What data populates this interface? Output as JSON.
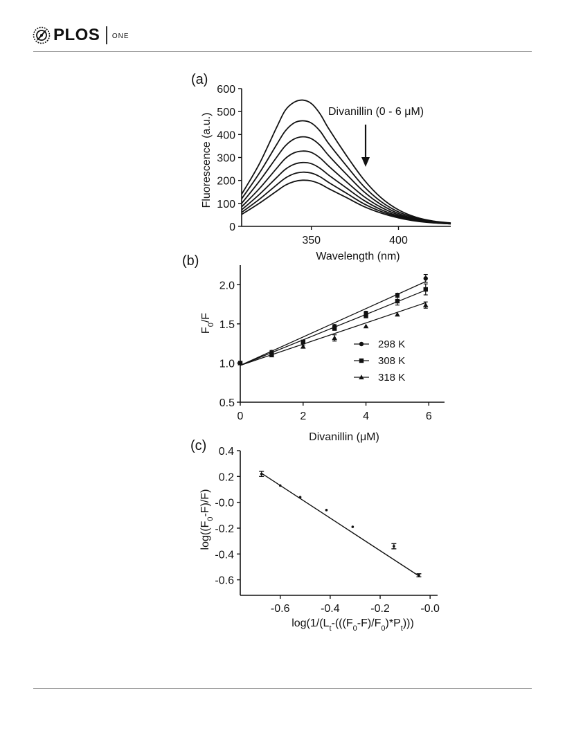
{
  "header": {
    "brand": "PLOS",
    "journal": "ONE",
    "logo_icon": "plos-logo-icon"
  },
  "chart_data": [
    {
      "panel_label": "(a)",
      "type": "line",
      "xlabel": "Wavelength (nm)",
      "ylabel": "Fluorescence (a.u.)",
      "xlim": [
        310,
        430
      ],
      "ylim": [
        0,
        600
      ],
      "xticks": [
        350,
        400
      ],
      "yticks": [
        0,
        100,
        200,
        300,
        400,
        500,
        600
      ],
      "annotation": "Divanillin (0 - 6 μM)",
      "arrow": "downward arrow indicating decreasing fluorescence",
      "x": [
        310,
        320,
        330,
        335,
        340,
        345,
        350,
        355,
        360,
        370,
        380,
        390,
        400,
        410,
        420,
        430
      ],
      "series": [
        {
          "values": [
            140,
            270,
            430,
            505,
            540,
            550,
            535,
            490,
            425,
            310,
            205,
            125,
            72,
            40,
            23,
            15
          ]
        },
        {
          "values": [
            120,
            230,
            355,
            415,
            450,
            460,
            450,
            415,
            360,
            265,
            175,
            108,
            63,
            36,
            21,
            14
          ]
        },
        {
          "values": [
            100,
            195,
            300,
            350,
            380,
            390,
            382,
            353,
            308,
            228,
            152,
            95,
            56,
            32,
            19,
            13
          ]
        },
        {
          "values": [
            85,
            163,
            252,
            295,
            320,
            328,
            322,
            298,
            262,
            195,
            131,
            83,
            50,
            29,
            18,
            12
          ]
        },
        {
          "values": [
            72,
            138,
            212,
            248,
            270,
            278,
            273,
            253,
            223,
            168,
            114,
            73,
            45,
            27,
            17,
            12
          ]
        },
        {
          "values": [
            61,
            117,
            180,
            210,
            229,
            236,
            232,
            216,
            191,
            145,
            99,
            65,
            41,
            25,
            16,
            11
          ]
        },
        {
          "values": [
            52,
            100,
            153,
            179,
            195,
            201,
            198,
            185,
            164,
            126,
            87,
            58,
            37,
            23,
            15,
            11
          ]
        }
      ]
    },
    {
      "panel_label": "(b)",
      "type": "scatter",
      "xlabel": "Divanillin (μM)",
      "ylabel": "F0/F",
      "xlim": [
        0,
        6.5
      ],
      "ylim": [
        0.5,
        2.25
      ],
      "xticks": [
        0,
        2,
        4,
        6
      ],
      "yticks": [
        0.5,
        1.0,
        1.5,
        2.0
      ],
      "ytick_labels": [
        "0.5",
        "1.0",
        "1.5",
        "2.0"
      ],
      "legend_position": "lower-right",
      "x": [
        0,
        1,
        2,
        3,
        4,
        5,
        5.9
      ],
      "series": [
        {
          "name": "298 K",
          "marker": "circle",
          "values": [
            1.0,
            1.14,
            1.27,
            1.47,
            1.64,
            1.87,
            2.08
          ],
          "error": [
            0.01,
            0.02,
            0.02,
            0.02,
            0.02,
            0.02,
            0.05
          ],
          "fit": [
            0.97,
            2.04
          ]
        },
        {
          "name": "308 K",
          "marker": "square",
          "values": [
            1.0,
            1.12,
            1.27,
            1.44,
            1.6,
            1.79,
            1.94
          ],
          "error": [
            0.01,
            0.02,
            0.02,
            0.02,
            0.02,
            0.05,
            0.07
          ],
          "fit": [
            0.97,
            1.93
          ]
        },
        {
          "name": "318 K",
          "marker": "triangle",
          "values": [
            1.0,
            1.1,
            1.21,
            1.32,
            1.47,
            1.62,
            1.74
          ],
          "error": [
            0.01,
            0.02,
            0.02,
            0.04,
            0.01,
            0.01,
            0.04
          ],
          "fit": [
            0.97,
            1.77
          ]
        }
      ]
    },
    {
      "panel_label": "(c)",
      "type": "scatter",
      "xlabel": "log(1/(Lt-(((F0-F)/F0)*Pt)))",
      "ylabel": "log((F0-F)/F)",
      "xlim": [
        -0.76,
        0.03
      ],
      "ylim": [
        -0.72,
        0.4
      ],
      "xticks": [
        -0.6,
        -0.4,
        -0.2,
        0.0
      ],
      "xtick_labels": [
        "-0.6",
        "-0.4",
        "-0.2",
        "-0.0"
      ],
      "yticks": [
        -0.6,
        -0.4,
        -0.2,
        0.0,
        0.2,
        0.4
      ],
      "ytick_labels": [
        "-0.6",
        "-0.4",
        "-0.2",
        "-0.0",
        "0.2",
        "0.4"
      ],
      "x": [
        -0.675,
        -0.6,
        -0.52,
        -0.415,
        -0.31,
        -0.145,
        -0.045
      ],
      "y": [
        0.22,
        0.13,
        0.04,
        -0.06,
        -0.19,
        -0.34,
        -0.565
      ],
      "error": [
        0.02,
        0.005,
        0.005,
        0.005,
        0.005,
        0.02,
        0.012
      ],
      "fit": {
        "x": [
          -0.675,
          -0.045
        ],
        "y": [
          0.225,
          -0.57
        ]
      }
    }
  ]
}
